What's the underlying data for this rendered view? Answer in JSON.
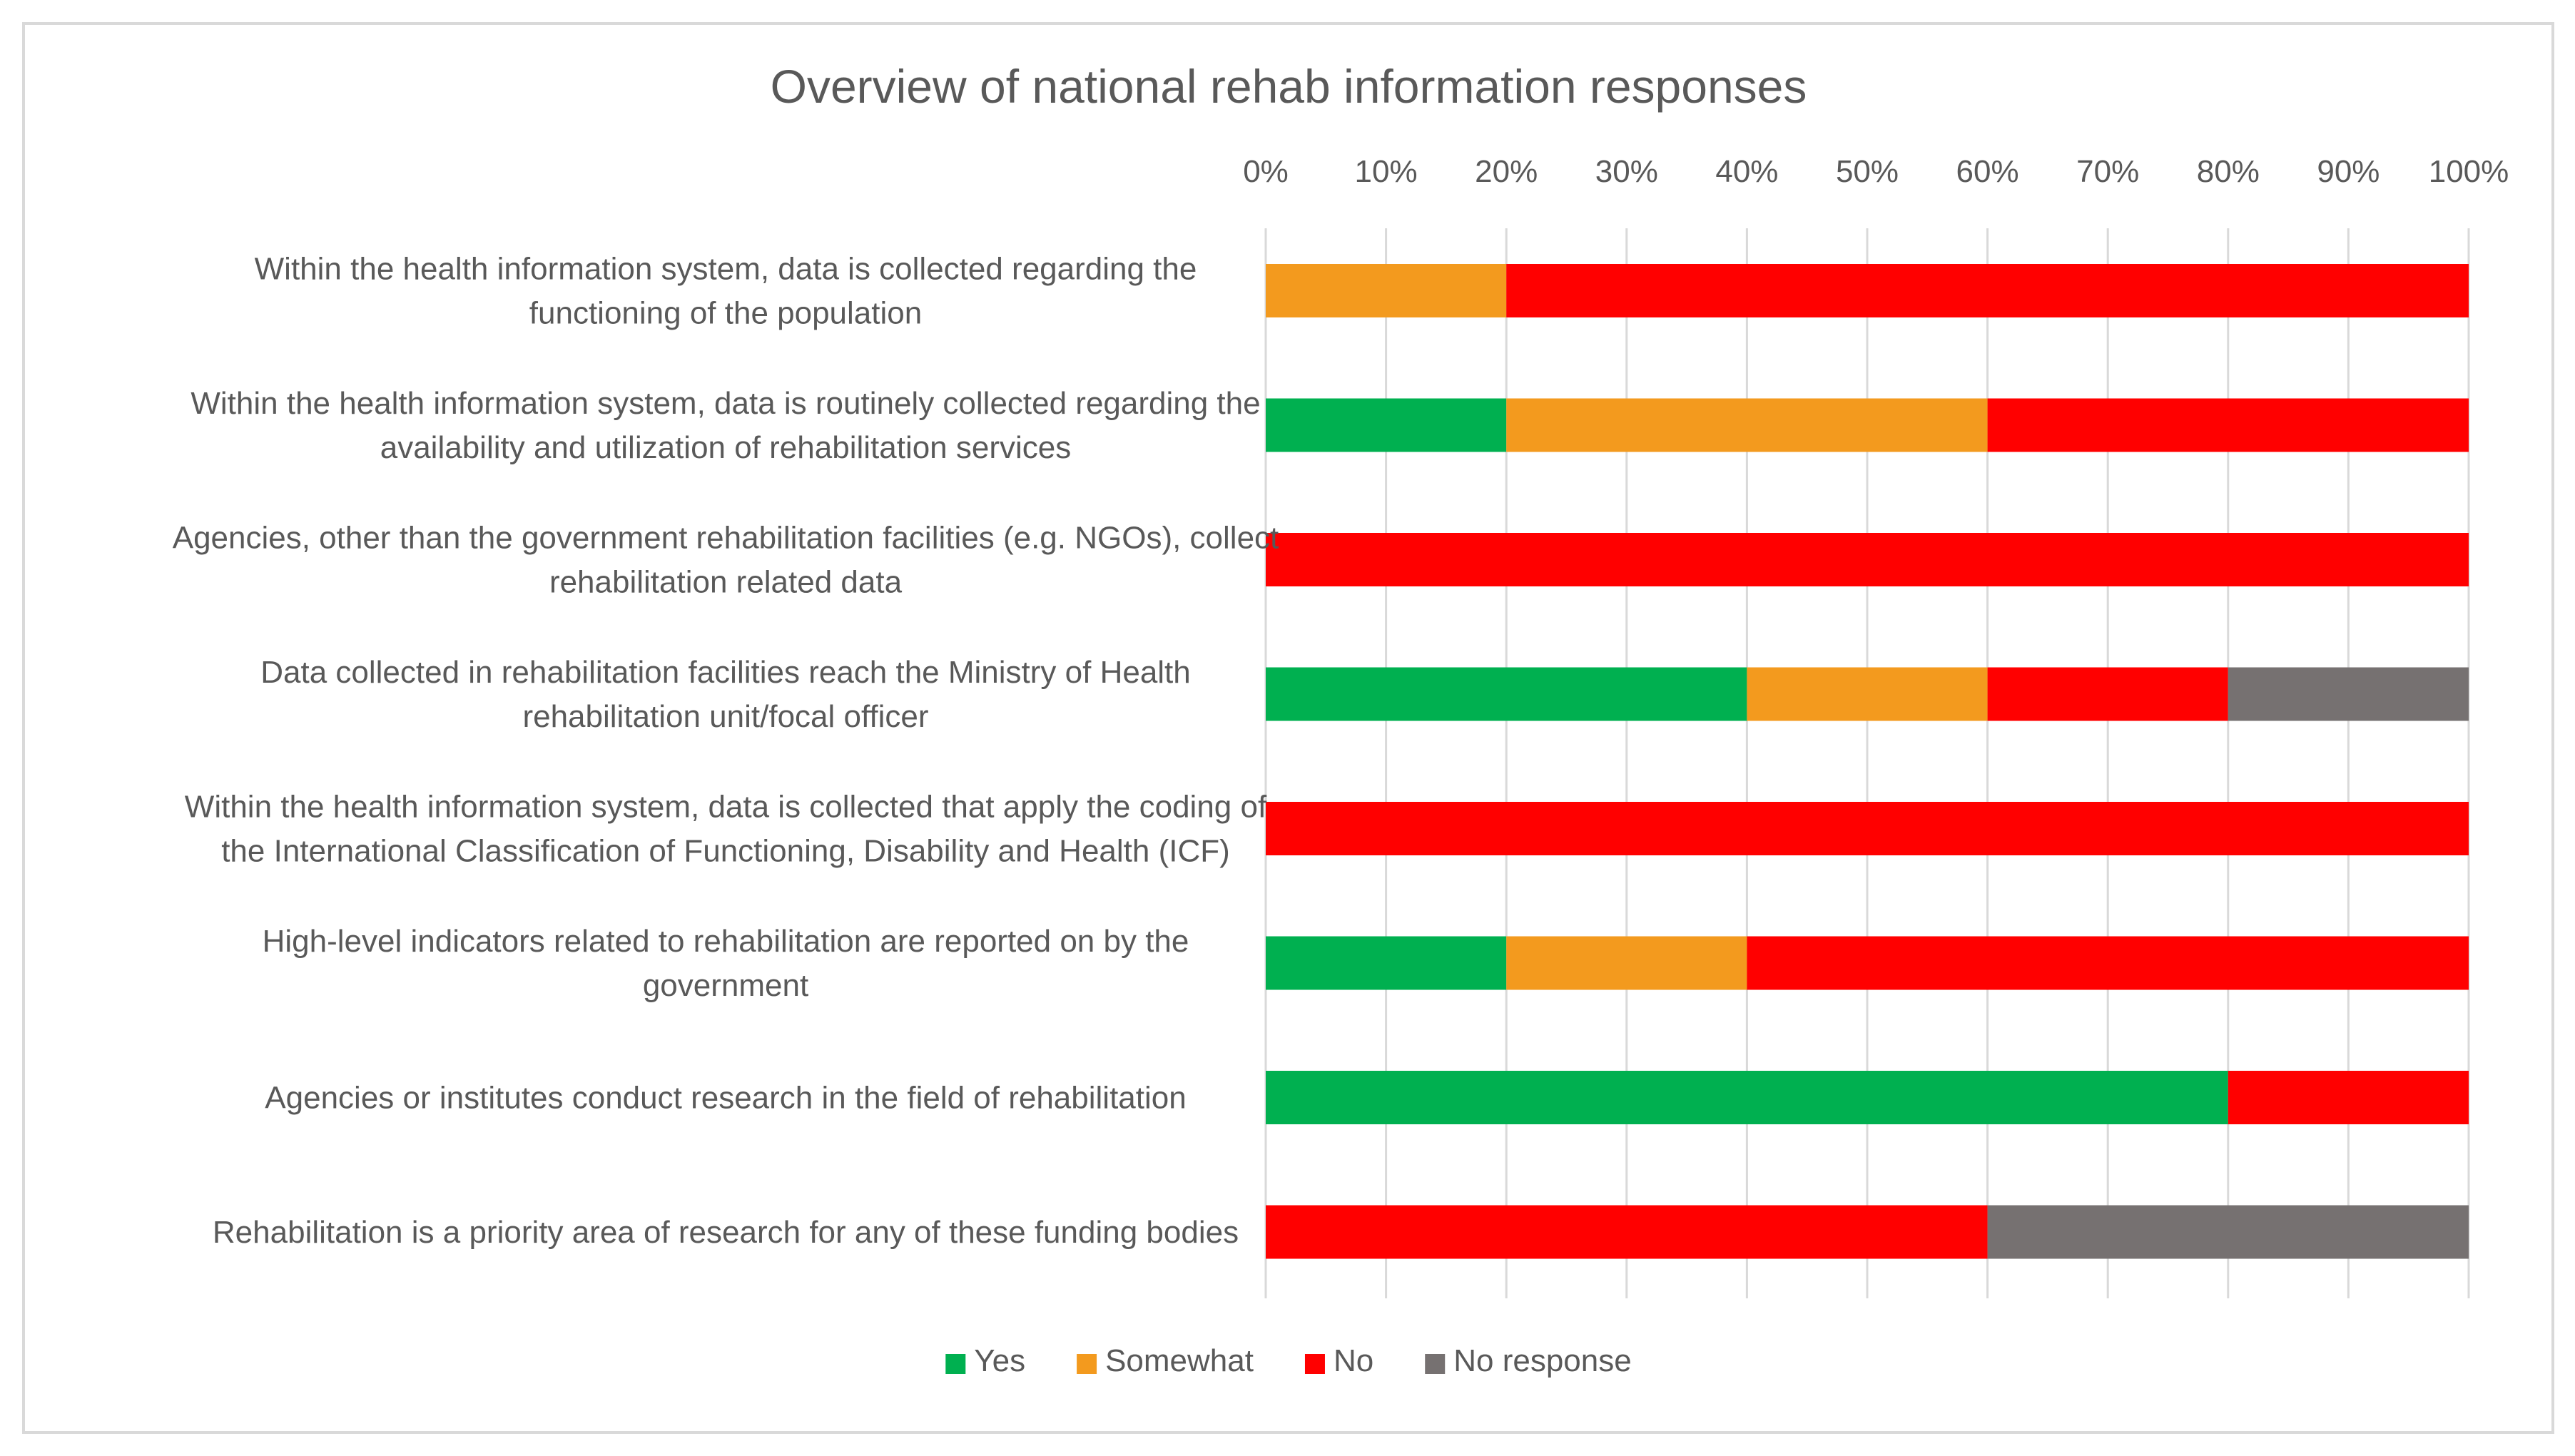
{
  "chart_data": {
    "type": "bar",
    "orientation": "horizontal",
    "stacked": "percent",
    "title": "Overview of national rehab information responses",
    "xlabel": "",
    "ylabel": "",
    "xlim": [
      0,
      100
    ],
    "x_ticks": [
      "0%",
      "10%",
      "20%",
      "30%",
      "40%",
      "50%",
      "60%",
      "70%",
      "80%",
      "90%",
      "100%"
    ],
    "grid": true,
    "legend_position": "bottom",
    "categories": [
      [
        "Within the health information system, data is collected regarding the",
        "functioning of the population"
      ],
      [
        "Within the health information system, data is routinely collected regarding the",
        "availability and utilization of rehabilitation services"
      ],
      [
        "Agencies, other than the government rehabilitation facilities (e.g. NGOs), collect",
        "rehabilitation related data"
      ],
      [
        "Data collected in rehabilitation facilities reach the Ministry of Health",
        "rehabilitation unit/focal officer"
      ],
      [
        "Within the health information system, data is collected that apply the coding of",
        "the International Classification of Functioning, Disability and Health (ICF)"
      ],
      [
        "High-level indicators related to rehabilitation are reported on by the",
        "government"
      ],
      [
        "Agencies or institutes conduct research in the field of rehabilitation"
      ],
      [
        "Rehabilitation is a priority area of research for any of these funding bodies"
      ]
    ],
    "series": [
      {
        "name": "Yes",
        "color": "#00b050",
        "values": [
          0,
          20,
          0,
          40,
          0,
          20,
          80,
          0
        ]
      },
      {
        "name": "Somewhat",
        "color": "#f39a1e",
        "values": [
          20,
          40,
          0,
          20,
          0,
          20,
          0,
          0
        ]
      },
      {
        "name": "No",
        "color": "#ff0000",
        "values": [
          80,
          40,
          100,
          20,
          100,
          60,
          20,
          60
        ]
      },
      {
        "name": "No response",
        "color": "#767171",
        "values": [
          0,
          0,
          0,
          20,
          0,
          0,
          0,
          40
        ]
      }
    ]
  }
}
